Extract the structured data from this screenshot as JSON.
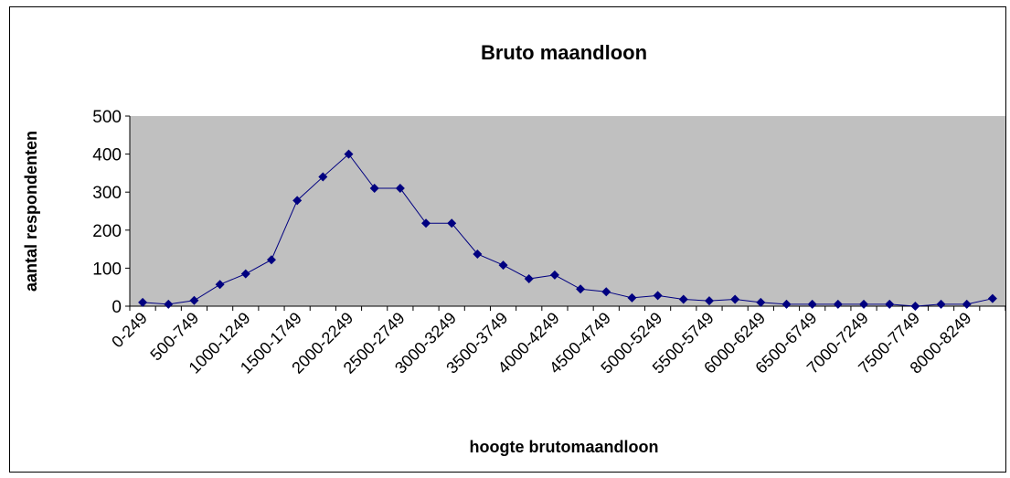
{
  "chart_data": {
    "type": "line",
    "title": "Bruto maandloon",
    "x_label": "hoogte brutomaandloon",
    "y_label": "aantal respondenten",
    "categories": [
      "0-249",
      null,
      "500-749",
      null,
      "1000-1249",
      null,
      "1500-1749",
      null,
      "2000-2249",
      null,
      "2500-2749",
      null,
      "3000-3249",
      null,
      "3500-3749",
      null,
      "4000-4249",
      null,
      "4500-4749",
      null,
      "5000-5249",
      null,
      "5500-5749",
      null,
      "6000-6249",
      null,
      "6500-6749",
      null,
      "7000-7249",
      null,
      "7500-7749",
      null,
      "8000-8249",
      null
    ],
    "series": [
      {
        "name": "aantal respondenten",
        "color": "#000080",
        "values": [
          10,
          5,
          15,
          57,
          85,
          122,
          278,
          340,
          400,
          310,
          310,
          218,
          218,
          137,
          108,
          72,
          82,
          45,
          38,
          22,
          28,
          18,
          14,
          18,
          10,
          5,
          5,
          5,
          5,
          5,
          0,
          5,
          5,
          20
        ]
      }
    ],
    "ylim": [
      0,
      500
    ],
    "yticks": [
      0,
      100,
      200,
      300,
      400,
      500
    ],
    "grid": false,
    "plot_background": "#c0c0c0"
  }
}
